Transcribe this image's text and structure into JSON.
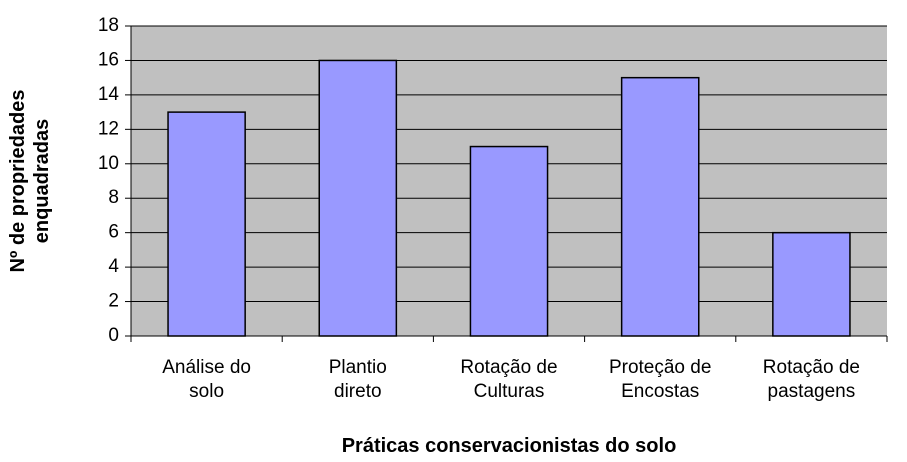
{
  "chart_data": {
    "type": "bar",
    "categories": [
      "Análise do\nsolo",
      "Plantio\ndireto",
      "Rotação de\nCulturas",
      "Proteção de\nEncostas",
      "Rotação de\npastagens"
    ],
    "values": [
      13,
      16,
      11,
      15,
      6
    ],
    "color": "#9999ff",
    "ylabel": "Nº de propriedades\nenquadradas",
    "xlabel": "Práticas conservacionistas do solo",
    "ylim": [
      0,
      18
    ],
    "yticks": [
      0,
      2,
      4,
      6,
      8,
      10,
      12,
      14,
      16,
      18
    ],
    "grid": true
  }
}
